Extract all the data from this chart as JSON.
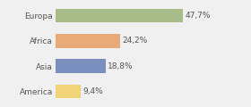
{
  "categories": [
    "Europa",
    "Africa",
    "Asia",
    "America"
  ],
  "values": [
    47.7,
    24.2,
    18.8,
    9.4
  ],
  "labels": [
    "47,7%",
    "24,2%",
    "18,8%",
    "9,4%"
  ],
  "colors": [
    "#a8bc8a",
    "#e8aa78",
    "#7b8fbf",
    "#f2d478"
  ],
  "background_color": "#f0f0f0",
  "xlim": [
    0,
    62
  ],
  "label_fontsize": 6.5,
  "tick_fontsize": 6.5,
  "bar_height": 0.55
}
